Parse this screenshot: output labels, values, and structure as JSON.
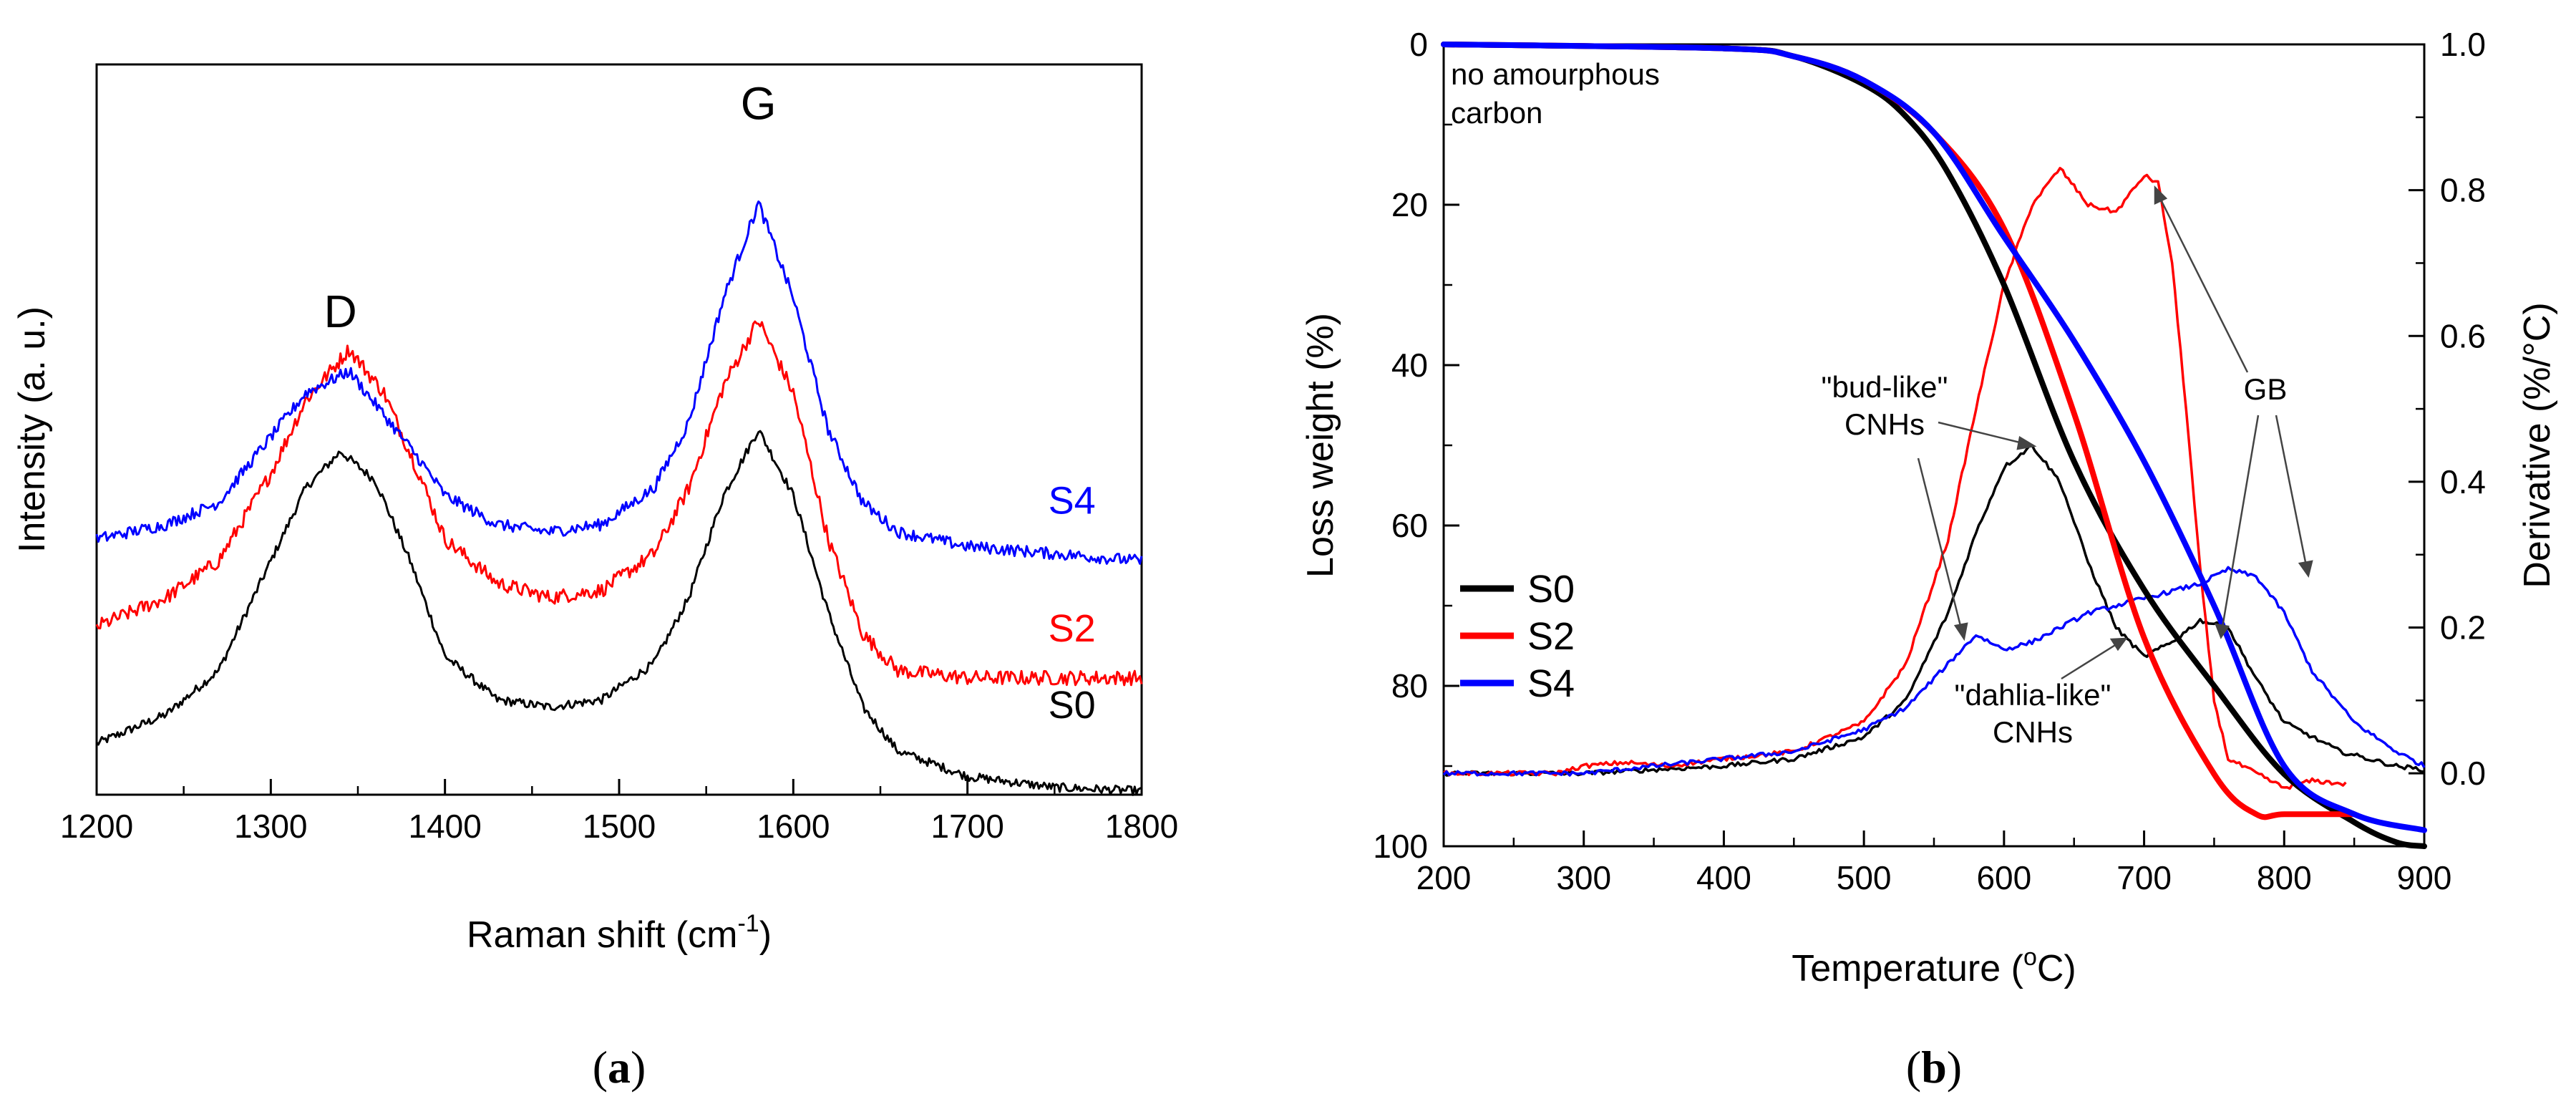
{
  "colors": {
    "S0": "#000000",
    "S2": "#ff0000",
    "S4": "#0000ff",
    "axis": "#000000"
  },
  "chart_data": [
    {
      "id": "a",
      "type": "line",
      "panel_label": {
        "open": "(",
        "letter": "a",
        "close": ")"
      },
      "xlabel": {
        "main": "Raman shift (cm",
        "sup": "-1",
        "end": ")"
      },
      "ylabel": "Intensity (a. u.)",
      "xlim": [
        1200,
        1800
      ],
      "xticks": [
        "1200",
        "1300",
        "1400",
        "1500",
        "1600",
        "1700",
        "1800"
      ],
      "y_units": "arbitrary (stacked, offset series)",
      "peak_labels": [
        {
          "text": "D",
          "x": 1340,
          "y": 0.64
        },
        {
          "text": "G",
          "x": 1580,
          "y": 0.925
        }
      ],
      "series": [
        {
          "name": "S0",
          "tag": "S0",
          "tag_x": 1760,
          "tag_y": 0.105,
          "noise": 0.006,
          "x": [
            1200,
            1240,
            1270,
            1300,
            1320,
            1340,
            1360,
            1380,
            1400,
            1430,
            1460,
            1490,
            1520,
            1540,
            1560,
            1580,
            1600,
            1620,
            1640,
            1660,
            1700,
            1750,
            1800
          ],
          "y": [
            0.07,
            0.11,
            0.17,
            0.32,
            0.42,
            0.47,
            0.43,
            0.32,
            0.19,
            0.13,
            0.12,
            0.13,
            0.18,
            0.27,
            0.41,
            0.5,
            0.41,
            0.25,
            0.12,
            0.06,
            0.025,
            0.01,
            0.005
          ]
        },
        {
          "name": "S2",
          "tag": "S2",
          "tag_x": 1760,
          "tag_y": 0.21,
          "noise": 0.01,
          "x": [
            1200,
            1240,
            1270,
            1300,
            1320,
            1345,
            1365,
            1385,
            1400,
            1430,
            1460,
            1490,
            1520,
            1540,
            1560,
            1580,
            1600,
            1620,
            1640,
            1660,
            1700,
            1750,
            1800
          ],
          "y": [
            0.23,
            0.27,
            0.32,
            0.44,
            0.54,
            0.61,
            0.55,
            0.44,
            0.35,
            0.29,
            0.27,
            0.28,
            0.33,
            0.42,
            0.56,
            0.65,
            0.55,
            0.35,
            0.22,
            0.17,
            0.16,
            0.16,
            0.16
          ]
        },
        {
          "name": "S4",
          "tag": "S4",
          "tag_x": 1760,
          "tag_y": 0.385,
          "noise": 0.008,
          "x": [
            1200,
            1240,
            1270,
            1300,
            1320,
            1345,
            1365,
            1385,
            1400,
            1430,
            1460,
            1490,
            1520,
            1540,
            1560,
            1580,
            1600,
            1620,
            1640,
            1660,
            1700,
            1750,
            1800
          ],
          "y": [
            0.35,
            0.37,
            0.4,
            0.49,
            0.55,
            0.58,
            0.52,
            0.46,
            0.41,
            0.37,
            0.36,
            0.37,
            0.42,
            0.51,
            0.68,
            0.81,
            0.68,
            0.5,
            0.4,
            0.36,
            0.34,
            0.33,
            0.32
          ]
        }
      ]
    },
    {
      "id": "b",
      "type": "line",
      "panel_label": {
        "open": "(",
        "letter": "b",
        "close": ")"
      },
      "xlabel": {
        "main": "Temperature (",
        "sup": "o",
        "end": "C)"
      },
      "ylabel": "Loss weight (%)",
      "y2label": "Derivative (%/°C)",
      "xlim": [
        200,
        900
      ],
      "ylim": [
        0,
        100
      ],
      "y2lim": [
        -0.1,
        1.0
      ],
      "xticks": [
        "200",
        "300",
        "400",
        "500",
        "600",
        "700",
        "800",
        "900"
      ],
      "yticks": [
        "0",
        "20",
        "40",
        "60",
        "80",
        "100"
      ],
      "y2ticks": [
        "0.0",
        "0.2",
        "0.4",
        "0.6",
        "0.8",
        "1.0"
      ],
      "legend": {
        "position": "lower-left",
        "entries": [
          "S0",
          "S2",
          "S4"
        ]
      },
      "annotations": {
        "no_amorphous": [
          "no amourphous",
          "carbon"
        ],
        "bud_like": [
          "\"bud-like\"",
          "CNHs"
        ],
        "dahlia_like": [
          "\"dahlia-like\"",
          "CNHs"
        ],
        "gb": "GB"
      },
      "weight_loss": [
        {
          "name": "S0",
          "x": [
            200,
            400,
            450,
            500,
            530,
            560,
            600,
            650,
            700,
            750,
            800,
            850,
            880,
            900
          ],
          "y": [
            0,
            0.5,
            1.5,
            5,
            9,
            16,
            30,
            52,
            68,
            80,
            91,
            97,
            99.5,
            100
          ]
        },
        {
          "name": "S2",
          "x": [
            200,
            400,
            450,
            500,
            550,
            600,
            650,
            700,
            750,
            780,
            800,
            850
          ],
          "y": [
            0,
            0.5,
            1.5,
            4.5,
            11,
            23,
            46,
            74,
            91,
            96,
            96,
            96
          ]
        },
        {
          "name": "S4",
          "x": [
            200,
            400,
            450,
            500,
            550,
            600,
            650,
            700,
            750,
            800,
            850,
            900
          ],
          "y": [
            0,
            0.5,
            1.5,
            4.5,
            11,
            24,
            37,
            52,
            70,
            90,
            96,
            98
          ]
        }
      ],
      "derivative": [
        {
          "name": "S0",
          "x": [
            200,
            300,
            400,
            450,
            500,
            530,
            560,
            580,
            600,
            620,
            640,
            660,
            680,
            700,
            720,
            740,
            760,
            780,
            800,
            840,
            880,
            900
          ],
          "y": [
            0,
            0,
            0.01,
            0.02,
            0.05,
            0.1,
            0.22,
            0.33,
            0.42,
            0.45,
            0.4,
            0.29,
            0.2,
            0.16,
            0.18,
            0.21,
            0.2,
            0.13,
            0.07,
            0.03,
            0.01,
            0.005
          ]
        },
        {
          "name": "S2",
          "x": [
            200,
            280,
            300,
            330,
            360,
            400,
            450,
            500,
            530,
            560,
            580,
            600,
            620,
            640,
            660,
            680,
            700,
            710,
            720,
            730,
            740,
            750,
            760,
            780,
            800,
            820,
            845
          ],
          "y": [
            0,
            0,
            0.01,
            0.015,
            0.01,
            0.02,
            0.03,
            0.07,
            0.15,
            0.32,
            0.5,
            0.67,
            0.78,
            0.83,
            0.78,
            0.77,
            0.82,
            0.81,
            0.7,
            0.5,
            0.28,
            0.1,
            0.02,
            0.0,
            -0.02,
            -0.01,
            -0.015
          ]
        },
        {
          "name": "S4",
          "x": [
            200,
            300,
            400,
            450,
            500,
            530,
            560,
            580,
            600,
            620,
            640,
            660,
            680,
            700,
            720,
            740,
            760,
            780,
            800,
            820,
            850,
            880,
            900
          ],
          "y": [
            0,
            0,
            0.02,
            0.03,
            0.06,
            0.09,
            0.15,
            0.19,
            0.17,
            0.18,
            0.2,
            0.22,
            0.23,
            0.24,
            0.25,
            0.26,
            0.28,
            0.27,
            0.22,
            0.14,
            0.07,
            0.03,
            0.01
          ]
        }
      ]
    }
  ]
}
